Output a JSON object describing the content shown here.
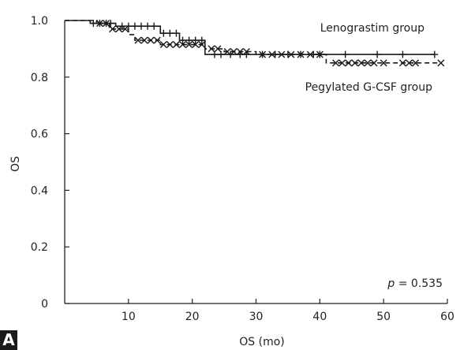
{
  "chart_data": {
    "type": "line",
    "subtype": "kaplan-meier-step",
    "xlabel": "OS (mo)",
    "ylabel": "OS",
    "xlim": [
      0,
      60
    ],
    "ylim": [
      0,
      1.0
    ],
    "x_ticks": [
      10,
      20,
      30,
      40,
      50,
      60
    ],
    "y_ticks": [
      0,
      0.2,
      0.4,
      0.6,
      0.8,
      1.0
    ],
    "y_tick_labels": [
      "0",
      "0.2",
      "0.4",
      "0.6",
      "0.8",
      "1.0"
    ],
    "grid": false,
    "annotation": {
      "p_label": "p",
      "rest": " = 0.535"
    },
    "panel_label": "A",
    "series": [
      {
        "name": "Lenograstim group",
        "line_style": "solid",
        "censor_marker": "plus",
        "steps": [
          [
            0,
            1.0
          ],
          [
            4,
            0.99
          ],
          [
            8,
            0.98
          ],
          [
            15,
            0.955
          ],
          [
            18,
            0.93
          ],
          [
            22,
            0.88
          ],
          [
            58,
            0.88
          ]
        ],
        "censored": [
          [
            4.5,
            0.99
          ],
          [
            5.5,
            0.99
          ],
          [
            6.5,
            0.99
          ],
          [
            7.2,
            0.99
          ],
          [
            9,
            0.98
          ],
          [
            10,
            0.98
          ],
          [
            11,
            0.98
          ],
          [
            12,
            0.98
          ],
          [
            13,
            0.98
          ],
          [
            14,
            0.98
          ],
          [
            15.5,
            0.955
          ],
          [
            16.5,
            0.955
          ],
          [
            17.5,
            0.955
          ],
          [
            18.5,
            0.93
          ],
          [
            19.5,
            0.93
          ],
          [
            20.5,
            0.93
          ],
          [
            21.5,
            0.93
          ],
          [
            23.5,
            0.88
          ],
          [
            24.5,
            0.88
          ],
          [
            26,
            0.88
          ],
          [
            27.5,
            0.88
          ],
          [
            28.5,
            0.88
          ],
          [
            31,
            0.88
          ],
          [
            33,
            0.88
          ],
          [
            35,
            0.88
          ],
          [
            37,
            0.88
          ],
          [
            39,
            0.88
          ],
          [
            40,
            0.88
          ],
          [
            44,
            0.88
          ],
          [
            49,
            0.88
          ],
          [
            53,
            0.88
          ],
          [
            58,
            0.88
          ]
        ]
      },
      {
        "name": "Pegylated G-CSF group",
        "line_style": "dashed",
        "censor_marker": "x",
        "steps": [
          [
            0,
            1.0
          ],
          [
            5,
            0.99
          ],
          [
            7,
            0.97
          ],
          [
            10,
            0.95
          ],
          [
            11,
            0.93
          ],
          [
            15,
            0.915
          ],
          [
            22,
            0.9
          ],
          [
            25,
            0.89
          ],
          [
            30,
            0.88
          ],
          [
            41,
            0.85
          ],
          [
            59,
            0.85
          ]
        ],
        "censored": [
          [
            5.5,
            0.99
          ],
          [
            6.5,
            0.99
          ],
          [
            7.5,
            0.97
          ],
          [
            8.5,
            0.97
          ],
          [
            9.5,
            0.97
          ],
          [
            11.5,
            0.93
          ],
          [
            12.5,
            0.93
          ],
          [
            13.5,
            0.93
          ],
          [
            14.5,
            0.93
          ],
          [
            15.5,
            0.915
          ],
          [
            16.5,
            0.915
          ],
          [
            17.5,
            0.915
          ],
          [
            18.5,
            0.915
          ],
          [
            19.5,
            0.915
          ],
          [
            20.5,
            0.915
          ],
          [
            21.5,
            0.915
          ],
          [
            23,
            0.9
          ],
          [
            24,
            0.9
          ],
          [
            25.5,
            0.89
          ],
          [
            26.5,
            0.89
          ],
          [
            27.5,
            0.89
          ],
          [
            28.5,
            0.89
          ],
          [
            31,
            0.88
          ],
          [
            32.5,
            0.88
          ],
          [
            34,
            0.88
          ],
          [
            35.5,
            0.88
          ],
          [
            37,
            0.88
          ],
          [
            38.5,
            0.88
          ],
          [
            40,
            0.88
          ],
          [
            42.5,
            0.85
          ],
          [
            43.5,
            0.85
          ],
          [
            44.5,
            0.85
          ],
          [
            45.5,
            0.85
          ],
          [
            46.5,
            0.85
          ],
          [
            47.5,
            0.85
          ],
          [
            48.5,
            0.85
          ],
          [
            50,
            0.85
          ],
          [
            53,
            0.85
          ],
          [
            54,
            0.85
          ],
          [
            55,
            0.85
          ],
          [
            59,
            0.85
          ]
        ]
      }
    ]
  }
}
